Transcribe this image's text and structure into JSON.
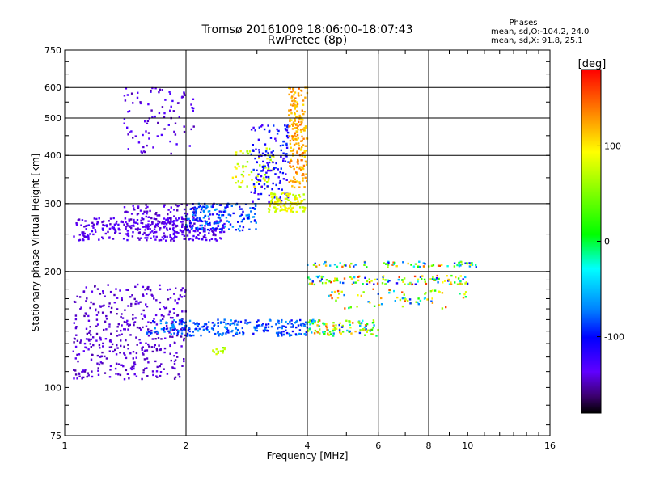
{
  "chart_data": {
    "type": "scatter",
    "title": "Tromsø 20161009 18:06:00-18:07:43",
    "subtitle": "RwPretec (8p)",
    "xlabel": "Frequency [MHz]",
    "ylabel": "Stationary phase Virtual Height [km]",
    "xscale": "log",
    "yscale": "log",
    "xlim": [
      1,
      16
    ],
    "ylim": [
      75,
      750
    ],
    "x_ticks": [
      1,
      2,
      4,
      6,
      8,
      10,
      16
    ],
    "y_ticks": [
      75,
      100,
      200,
      300,
      400,
      500,
      600,
      750
    ],
    "x_grid": [
      2,
      4,
      6,
      8
    ],
    "y_grid": [
      200,
      300,
      400,
      500,
      600
    ],
    "grid": true,
    "annotation": {
      "heading": "Phases",
      "line1": "mean, sd,O:-104.2, 24.0",
      "line2": "mean, sd,X:  91.8, 25.1"
    },
    "colorbar": {
      "label": "[deg]",
      "ticks": [
        100,
        0,
        -100
      ],
      "range": [
        -180,
        180
      ],
      "colormap": "rainbow (black-purple-blue-cyan-green-yellow-red)"
    },
    "point_groups": [
      {
        "x": [
          1.05,
          2.0
        ],
        "y": [
          105,
          185
        ],
        "phase": [
          -150,
          -135
        ],
        "count": 420
      },
      {
        "x": [
          1.05,
          2.5
        ],
        "y": [
          240,
          275
        ],
        "phase": [
          -145,
          -125
        ],
        "count": 300
      },
      {
        "x": [
          1.4,
          2.1
        ],
        "y": [
          250,
          300
        ],
        "phase": [
          -150,
          -130
        ],
        "count": 120
      },
      {
        "x": [
          1.4,
          2.1
        ],
        "y": [
          400,
          600
        ],
        "phase": [
          -150,
          -125
        ],
        "count": 90
      },
      {
        "x": [
          2.0,
          3.0
        ],
        "y": [
          255,
          300
        ],
        "phase": [
          -120,
          -60
        ],
        "count": 180
      },
      {
        "x": [
          2.6,
          3.3
        ],
        "y": [
          330,
          420
        ],
        "phase": [
          40,
          110
        ],
        "count": 60
      },
      {
        "x": [
          2.9,
          3.6
        ],
        "y": [
          300,
          480
        ],
        "phase": [
          -130,
          -90
        ],
        "count": 140
      },
      {
        "x": [
          3.2,
          3.95
        ],
        "y": [
          285,
          320
        ],
        "phase": [
          60,
          110
        ],
        "count": 120
      },
      {
        "x": [
          3.6,
          4.0
        ],
        "y": [
          330,
          600
        ],
        "phase": [
          100,
          150
        ],
        "count": 200
      },
      {
        "x": [
          1.6,
          4.0
        ],
        "y": [
          136,
          150
        ],
        "phase": [
          -110,
          -60
        ],
        "count": 260
      },
      {
        "x": [
          4.0,
          6.0
        ],
        "y": [
          136,
          150
        ],
        "phase": [
          -100,
          150
        ],
        "count": 110
      },
      {
        "x": [
          4.0,
          10.0
        ],
        "y": [
          185,
          195
        ],
        "phase": [
          -120,
          170
        ],
        "count": 120
      },
      {
        "x": [
          4.0,
          10.5
        ],
        "y": [
          205,
          212
        ],
        "phase": [
          -110,
          160
        ],
        "count": 80
      },
      {
        "x": [
          4.5,
          10.0
        ],
        "y": [
          160,
          180
        ],
        "phase": [
          -100,
          160
        ],
        "count": 70
      },
      {
        "x": [
          2.3,
          2.5
        ],
        "y": [
          122,
          128
        ],
        "phase": [
          40,
          80
        ],
        "count": 14
      }
    ]
  }
}
